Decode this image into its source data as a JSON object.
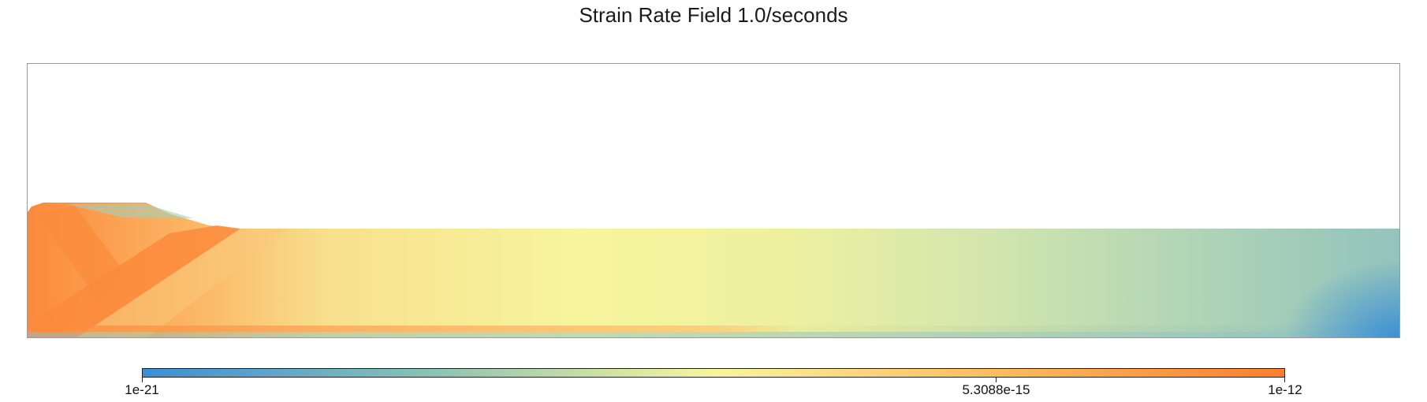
{
  "chart_data": {
    "type": "heatmap",
    "title": "Strain Rate Field 1.0/seconds",
    "colorbar": {
      "scale": "log",
      "min": 1e-21,
      "max": 1e-12,
      "tick_values": [
        1e-21,
        5.3088e-15,
        1e-12
      ],
      "tick_labels": [
        "1e-21",
        "5.3088e-15",
        "1e-12"
      ],
      "colors": [
        "#3a8fd6",
        "#8cc1b4",
        "#f7f59c",
        "#fdbb5c",
        "#fd7e2b"
      ]
    },
    "field_colors": {
      "hot": "#fb8a3c",
      "warm": "#f9c87a",
      "mid": "#f7f59e",
      "cool": "#a9cfb6",
      "cold": "#8cbfc1",
      "deep": "#3a8fd6"
    }
  }
}
